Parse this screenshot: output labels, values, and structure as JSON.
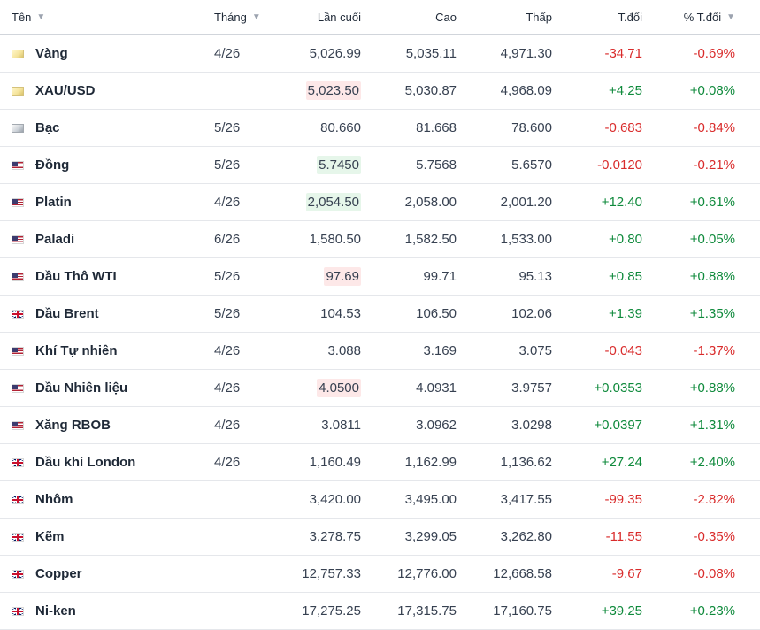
{
  "header": {
    "name": "Tên",
    "month": "Tháng",
    "last": "Lần cuối",
    "high": "Cao",
    "low": "Thấp",
    "change": "T.đổi",
    "change_pct": "% T.đổi"
  },
  "colors": {
    "positive": "#0f8a3c",
    "negative": "#d92b2b",
    "highlight_up": "#e6f6ea",
    "highlight_down": "#fde8e8"
  },
  "rows": [
    {
      "name": "Vàng",
      "flag": "gold-icon",
      "month": "4/26",
      "last": "5,026.99",
      "high": "5,035.11",
      "low": "4,971.30",
      "change": "-34.71",
      "change_pct": "-0.69%",
      "dir": "down",
      "highlight": "none"
    },
    {
      "name": "XAU/USD",
      "flag": "gold-icon",
      "month": "",
      "last": "5,023.50",
      "high": "5,030.87",
      "low": "4,968.09",
      "change": "+4.25",
      "change_pct": "+0.08%",
      "dir": "up",
      "highlight": "red"
    },
    {
      "name": "Bạc",
      "flag": "silver-icon",
      "month": "5/26",
      "last": "80.660",
      "high": "81.668",
      "low": "78.600",
      "change": "-0.683",
      "change_pct": "-0.84%",
      "dir": "down",
      "highlight": "none"
    },
    {
      "name": "Đồng",
      "flag": "us-flag-icon",
      "month": "5/26",
      "last": "5.7450",
      "high": "5.7568",
      "low": "5.6570",
      "change": "-0.0120",
      "change_pct": "-0.21%",
      "dir": "down",
      "highlight": "green"
    },
    {
      "name": "Platin",
      "flag": "us-flag-icon",
      "month": "4/26",
      "last": "2,054.50",
      "high": "2,058.00",
      "low": "2,001.20",
      "change": "+12.40",
      "change_pct": "+0.61%",
      "dir": "up",
      "highlight": "green"
    },
    {
      "name": "Paladi",
      "flag": "us-flag-icon",
      "month": "6/26",
      "last": "1,580.50",
      "high": "1,582.50",
      "low": "1,533.00",
      "change": "+0.80",
      "change_pct": "+0.05%",
      "dir": "up",
      "highlight": "none"
    },
    {
      "name": "Dầu Thô WTI",
      "flag": "us-flag-icon",
      "month": "5/26",
      "last": "97.69",
      "high": "99.71",
      "low": "95.13",
      "change": "+0.85",
      "change_pct": "+0.88%",
      "dir": "up",
      "highlight": "red"
    },
    {
      "name": "Dầu Brent",
      "flag": "uk-flag-icon",
      "month": "5/26",
      "last": "104.53",
      "high": "106.50",
      "low": "102.06",
      "change": "+1.39",
      "change_pct": "+1.35%",
      "dir": "up",
      "highlight": "none"
    },
    {
      "name": "Khí Tự nhiên",
      "flag": "us-flag-icon",
      "month": "4/26",
      "last": "3.088",
      "high": "3.169",
      "low": "3.075",
      "change": "-0.043",
      "change_pct": "-1.37%",
      "dir": "down",
      "highlight": "none"
    },
    {
      "name": "Dầu Nhiên liệu",
      "flag": "us-flag-icon",
      "month": "4/26",
      "last": "4.0500",
      "high": "4.0931",
      "low": "3.9757",
      "change": "+0.0353",
      "change_pct": "+0.88%",
      "dir": "up",
      "highlight": "red"
    },
    {
      "name": "Xăng RBOB",
      "flag": "us-flag-icon",
      "month": "4/26",
      "last": "3.0811",
      "high": "3.0962",
      "low": "3.0298",
      "change": "+0.0397",
      "change_pct": "+1.31%",
      "dir": "up",
      "highlight": "none"
    },
    {
      "name": "Dầu khí London",
      "flag": "uk-flag-icon",
      "month": "4/26",
      "last": "1,160.49",
      "high": "1,162.99",
      "low": "1,136.62",
      "change": "+27.24",
      "change_pct": "+2.40%",
      "dir": "up",
      "highlight": "none"
    },
    {
      "name": "Nhôm",
      "flag": "uk-flag-icon",
      "month": "",
      "last": "3,420.00",
      "high": "3,495.00",
      "low": "3,417.55",
      "change": "-99.35",
      "change_pct": "-2.82%",
      "dir": "down",
      "highlight": "none"
    },
    {
      "name": "Kẽm",
      "flag": "uk-flag-icon",
      "month": "",
      "last": "3,278.75",
      "high": "3,299.05",
      "low": "3,262.80",
      "change": "-11.55",
      "change_pct": "-0.35%",
      "dir": "down",
      "highlight": "none"
    },
    {
      "name": "Copper",
      "flag": "uk-flag-icon",
      "month": "",
      "last": "12,757.33",
      "high": "12,776.00",
      "low": "12,668.58",
      "change": "-9.67",
      "change_pct": "-0.08%",
      "dir": "down",
      "highlight": "none"
    },
    {
      "name": "Ni-ken",
      "flag": "uk-flag-icon",
      "month": "",
      "last": "17,275.25",
      "high": "17,315.75",
      "low": "17,160.75",
      "change": "+39.25",
      "change_pct": "+0.23%",
      "dir": "up",
      "highlight": "none"
    }
  ]
}
